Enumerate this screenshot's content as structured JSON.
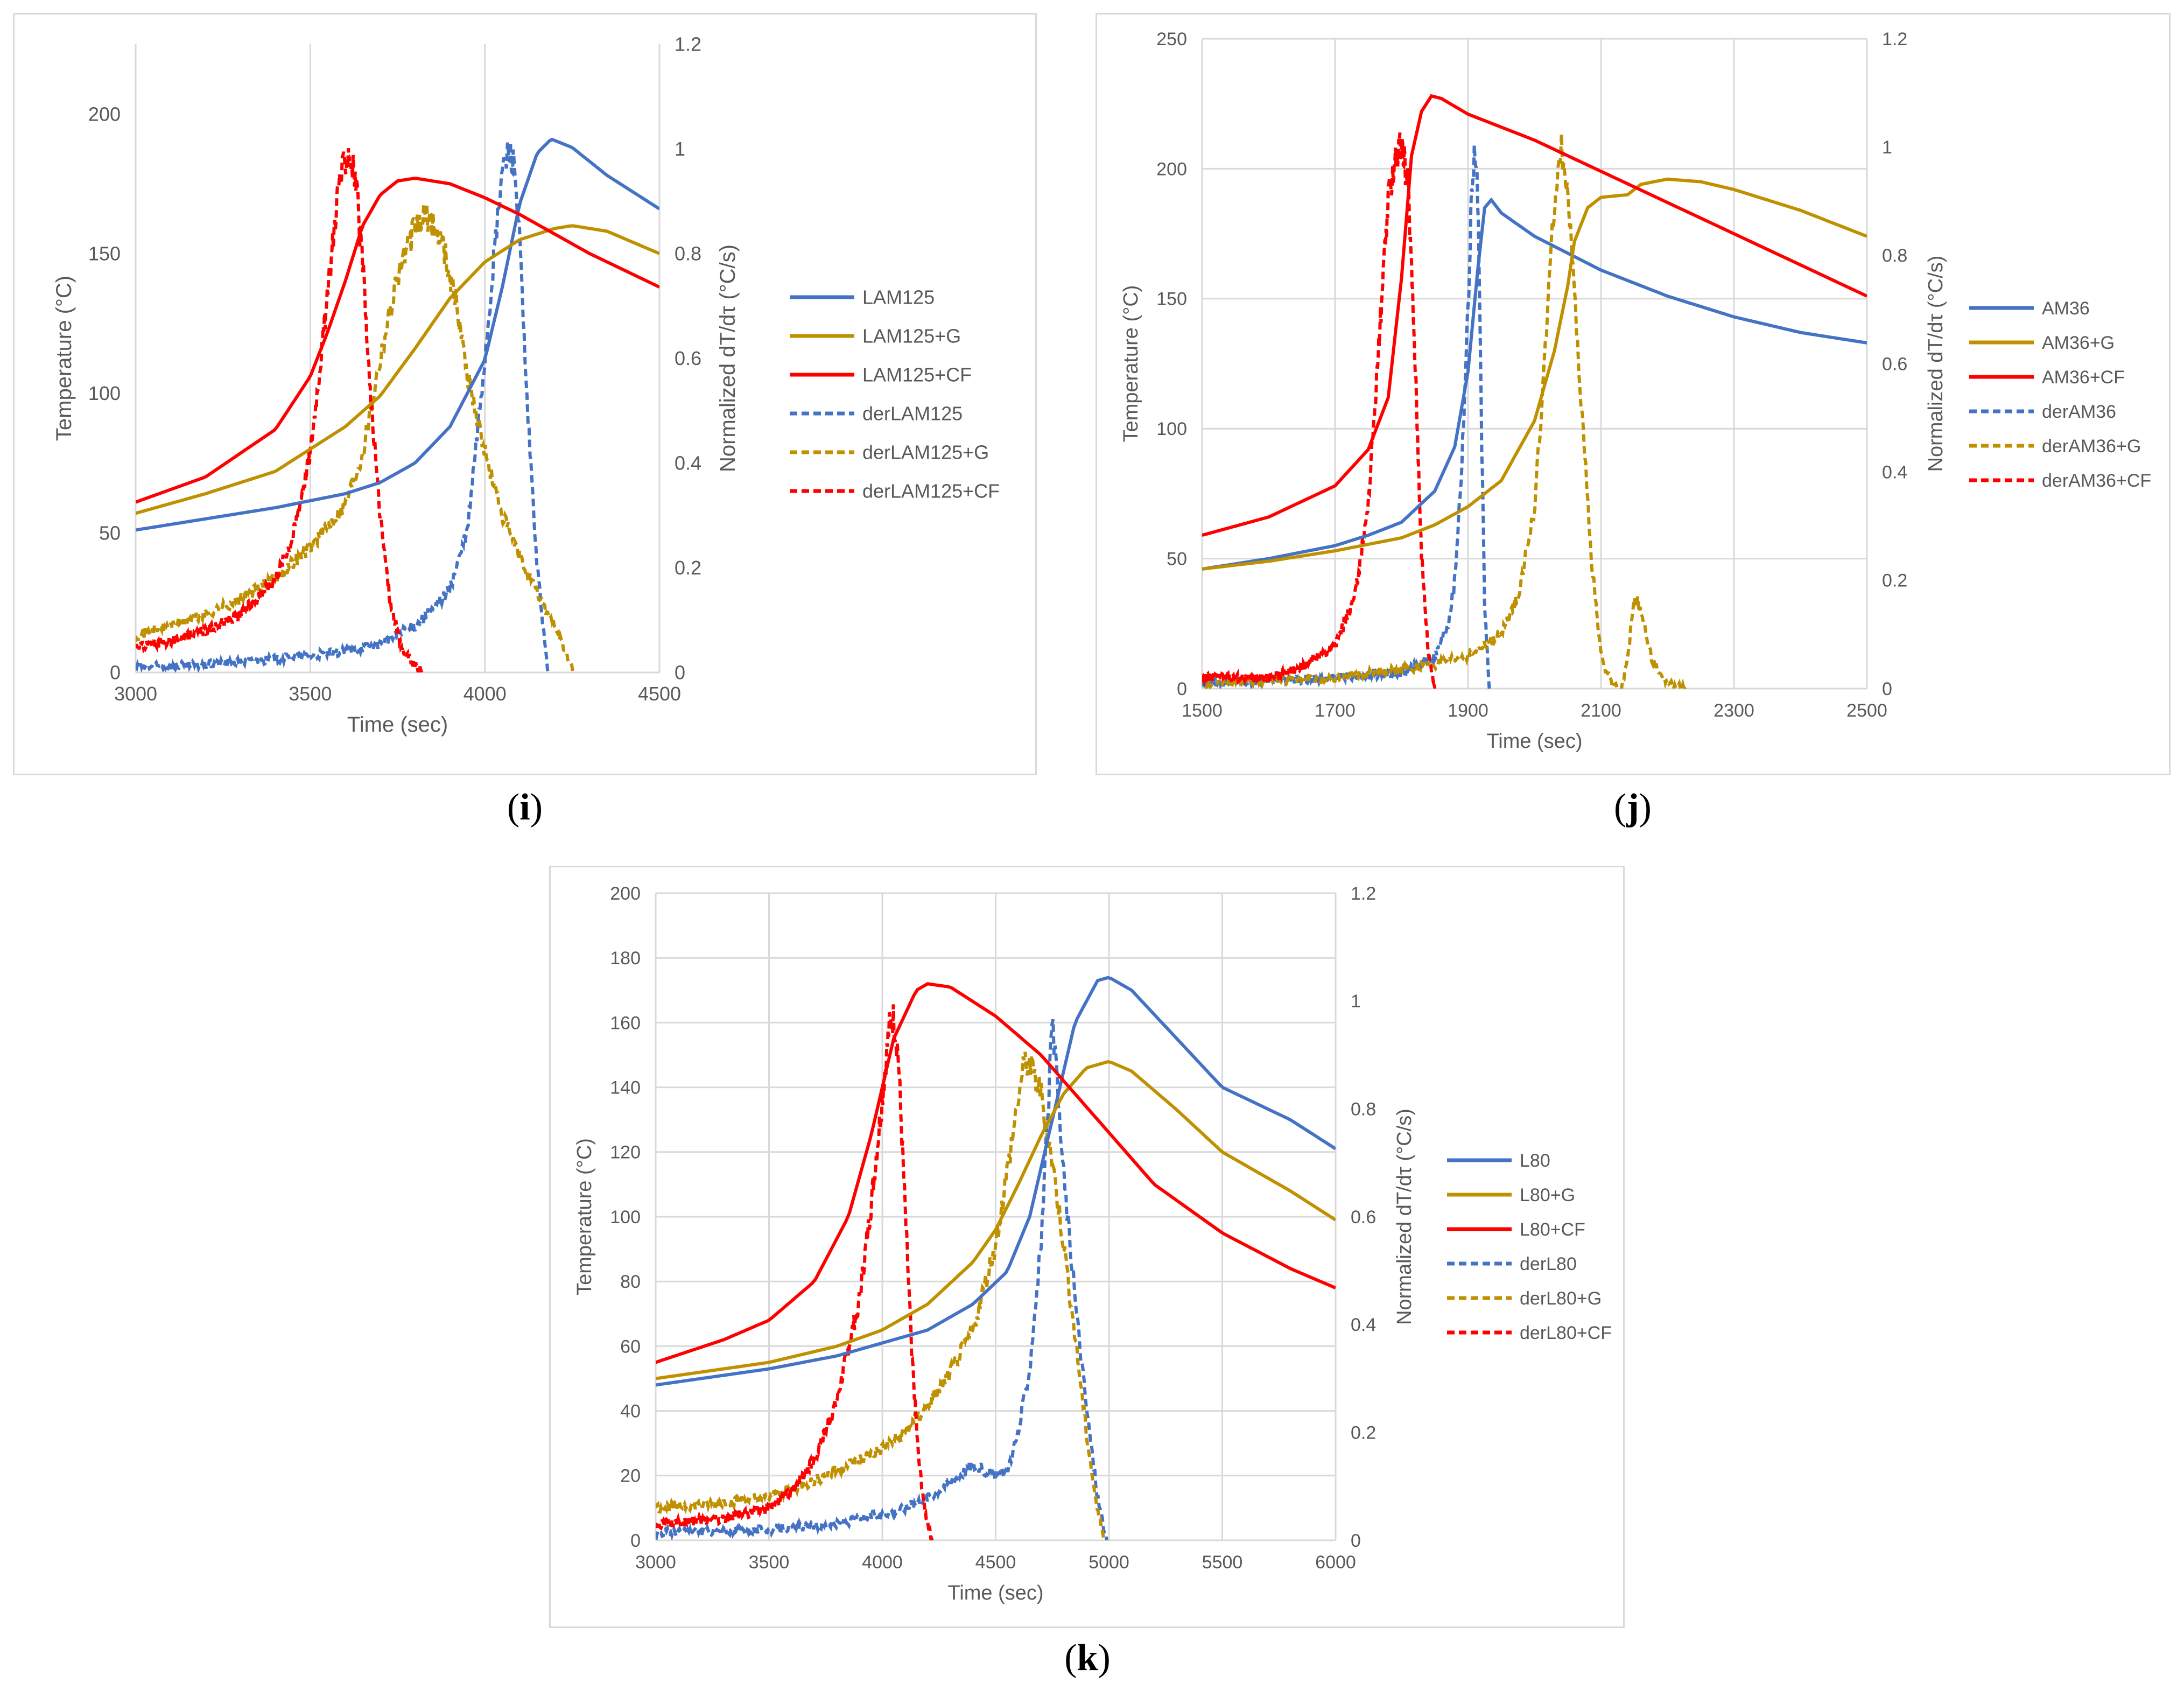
{
  "colors": {
    "blue": "#4472c4",
    "gold": "#bf9000",
    "red": "#ff0000",
    "grid": "#d9d9d9",
    "axis_text": "#595959"
  },
  "panels": [
    {
      "label": "i"
    },
    {
      "label": "j"
    },
    {
      "label": "k"
    }
  ],
  "chart_data": [
    {
      "type": "line",
      "panel": "i",
      "xlabel": "Time (sec)",
      "ylabel": "Temperature (°C)",
      "y2label": "Normalized dT/dτ (°C/s)",
      "xlim": [
        3000,
        4500
      ],
      "ylim": [
        0,
        225
      ],
      "y2lim": [
        0,
        1.2
      ],
      "xticks": [
        "3000",
        "3500",
        "4000",
        "4500"
      ],
      "yticks": [
        "0",
        "50",
        "100",
        "150",
        "200"
      ],
      "y2ticks": [
        "0",
        "0.2",
        "0.4",
        "0.6",
        "0.8",
        "1",
        "1.2"
      ],
      "grid": "vertical",
      "legend_position": "right",
      "series": [
        {
          "name": "LAM125",
          "axis": "left",
          "style": "solid",
          "color": "blue",
          "x": [
            3000,
            3200,
            3400,
            3600,
            3700,
            3800,
            3900,
            4000,
            4050,
            4100,
            4150,
            4190,
            4250,
            4350,
            4500
          ],
          "y": [
            51,
            55,
            59,
            64,
            68,
            75,
            88,
            112,
            138,
            168,
            186,
            191,
            188,
            178,
            166
          ]
        },
        {
          "name": "LAM125+G",
          "axis": "left",
          "style": "solid",
          "color": "gold",
          "x": [
            3000,
            3200,
            3400,
            3600,
            3700,
            3800,
            3900,
            4000,
            4100,
            4200,
            4250,
            4350,
            4500
          ],
          "y": [
            57,
            64,
            72,
            88,
            99,
            116,
            134,
            147,
            155,
            159,
            160,
            158,
            150
          ]
        },
        {
          "name": "LAM125+CF",
          "axis": "left",
          "style": "solid",
          "color": "red",
          "x": [
            3000,
            3200,
            3400,
            3500,
            3550,
            3600,
            3650,
            3700,
            3750,
            3800,
            3900,
            4000,
            4100,
            4200,
            4300,
            4400,
            4500
          ],
          "y": [
            61,
            70,
            87,
            106,
            122,
            140,
            160,
            171,
            176,
            177,
            175,
            170,
            164,
            157,
            150,
            144,
            138
          ]
        },
        {
          "name": "derLAM125",
          "axis": "right",
          "style": "dashed",
          "color": "blue",
          "x": [
            3000,
            3200,
            3400,
            3600,
            3700,
            3800,
            3850,
            3900,
            3950,
            4000,
            4030,
            4050,
            4070,
            4085,
            4100,
            4120,
            4150,
            4180
          ],
          "y": [
            0.01,
            0.015,
            0.025,
            0.04,
            0.055,
            0.09,
            0.12,
            0.16,
            0.27,
            0.6,
            0.82,
            0.96,
            1.0,
            0.97,
            0.82,
            0.52,
            0.2,
            0.0
          ]
        },
        {
          "name": "derLAM125+G",
          "axis": "right",
          "style": "dashed",
          "color": "gold",
          "x": [
            3000,
            3100,
            3200,
            3300,
            3400,
            3500,
            3600,
            3650,
            3700,
            3750,
            3800,
            3830,
            3850,
            3880,
            3920,
            3950,
            4000,
            4050,
            4100,
            4150,
            4200,
            4230,
            4255
          ],
          "y": [
            0.07,
            0.09,
            0.11,
            0.14,
            0.18,
            0.24,
            0.32,
            0.42,
            0.6,
            0.76,
            0.85,
            0.87,
            0.86,
            0.82,
            0.7,
            0.57,
            0.42,
            0.3,
            0.22,
            0.15,
            0.09,
            0.04,
            0.0
          ]
        },
        {
          "name": "derLAM125+CF",
          "axis": "right",
          "style": "dashed",
          "color": "red",
          "x": [
            3000,
            3100,
            3200,
            3300,
            3400,
            3450,
            3500,
            3550,
            3580,
            3610,
            3630,
            3650,
            3670,
            3700,
            3730,
            3760,
            3790,
            3820
          ],
          "y": [
            0.05,
            0.06,
            0.08,
            0.11,
            0.18,
            0.26,
            0.42,
            0.72,
            0.93,
            1.0,
            0.94,
            0.78,
            0.55,
            0.3,
            0.13,
            0.05,
            0.02,
            0.0
          ]
        }
      ]
    },
    {
      "type": "line",
      "panel": "j",
      "xlabel": "Time (sec)",
      "ylabel": "Temperature (°C)",
      "y2label": "Normalized dT/dτ (°C/s)",
      "xlim": [
        1500,
        2500
      ],
      "ylim": [
        0,
        250
      ],
      "y2lim": [
        0,
        1.2
      ],
      "xticks": [
        "1500",
        "1700",
        "1900",
        "2100",
        "2300",
        "2500"
      ],
      "yticks": [
        "0",
        "50",
        "100",
        "150",
        "200",
        "250"
      ],
      "y2ticks": [
        "0",
        "0.2",
        "0.4",
        "0.6",
        "0.8",
        "1",
        "1.2"
      ],
      "grid": "both",
      "legend_position": "right",
      "series": [
        {
          "name": "AM36",
          "axis": "left",
          "style": "solid",
          "color": "blue",
          "x": [
            1500,
            1600,
            1700,
            1750,
            1800,
            1850,
            1880,
            1900,
            1915,
            1925,
            1935,
            1950,
            2000,
            2100,
            2200,
            2300,
            2400,
            2450,
            2500
          ],
          "y": [
            46,
            50,
            55,
            59,
            64,
            76,
            93,
            122,
            162,
            185,
            188,
            183,
            174,
            161,
            151,
            143,
            137,
            135,
            133
          ]
        },
        {
          "name": "AM36+G",
          "axis": "left",
          "style": "solid",
          "color": "gold",
          "x": [
            1500,
            1600,
            1700,
            1800,
            1850,
            1900,
            1950,
            2000,
            2030,
            2050,
            2060,
            2080,
            2100,
            2140,
            2160,
            2200,
            2250,
            2300,
            2400,
            2500
          ],
          "y": [
            46,
            49,
            53,
            58,
            63,
            70,
            80,
            103,
            130,
            155,
            172,
            185,
            189,
            190,
            194,
            196,
            195,
            192,
            184,
            174
          ]
        },
        {
          "name": "AM36+CF",
          "axis": "left",
          "style": "solid",
          "color": "red",
          "x": [
            1500,
            1600,
            1700,
            1750,
            1780,
            1800,
            1815,
            1830,
            1845,
            1860,
            1900,
            2000,
            2100,
            2200,
            2300,
            2400,
            2500
          ],
          "y": [
            59,
            66,
            78,
            92,
            112,
            158,
            205,
            222,
            228,
            227,
            221,
            211,
            199,
            187,
            175,
            163,
            151
          ]
        },
        {
          "name": "derAM36",
          "axis": "right",
          "style": "dashed",
          "color": "blue",
          "x": [
            1500,
            1600,
            1700,
            1800,
            1850,
            1870,
            1880,
            1890,
            1900,
            1905,
            1910,
            1915,
            1920,
            1925,
            1932
          ],
          "y": [
            0.01,
            0.015,
            0.02,
            0.03,
            0.06,
            0.12,
            0.2,
            0.4,
            0.7,
            0.9,
            1.0,
            0.9,
            0.5,
            0.15,
            0.0
          ]
        },
        {
          "name": "derAM36+G",
          "axis": "right",
          "style": "dashed",
          "color": "gold",
          "x": [
            1500,
            1700,
            1800,
            1850,
            1900,
            1950,
            1975,
            2000,
            2015,
            2030,
            2040,
            2050,
            2060,
            2075,
            2085,
            2100,
            2115,
            2130,
            2140,
            2148,
            2155,
            2165,
            2175,
            2190,
            2210,
            2230
          ],
          "y": [
            0.01,
            0.02,
            0.035,
            0.045,
            0.06,
            0.1,
            0.17,
            0.33,
            0.6,
            0.9,
            1.0,
            0.92,
            0.72,
            0.44,
            0.25,
            0.06,
            0.01,
            0.0,
            0.05,
            0.16,
            0.16,
            0.12,
            0.06,
            0.02,
            0.005,
            0.0
          ]
        },
        {
          "name": "derAM36+CF",
          "axis": "right",
          "style": "dashed",
          "color": "red",
          "x": [
            1500,
            1600,
            1650,
            1700,
            1730,
            1750,
            1765,
            1780,
            1790,
            1800,
            1810,
            1820,
            1830,
            1840,
            1850
          ],
          "y": [
            0.02,
            0.02,
            0.04,
            0.08,
            0.17,
            0.34,
            0.62,
            0.9,
            0.98,
            1.0,
            0.93,
            0.62,
            0.25,
            0.07,
            0.0
          ]
        }
      ]
    },
    {
      "type": "line",
      "panel": "k",
      "xlabel": "Time (sec)",
      "ylabel": "Temperature (°C)",
      "y2label": "Normalized dT/dτ (°C/s)",
      "xlim": [
        3000,
        6000
      ],
      "ylim": [
        0,
        200
      ],
      "y2lim": [
        0,
        1.2
      ],
      "xticks": [
        "3000",
        "3500",
        "4000",
        "4500",
        "5000",
        "5500",
        "6000"
      ],
      "yticks": [
        "0",
        "20",
        "40",
        "60",
        "80",
        "100",
        "120",
        "140",
        "160",
        "180",
        "200"
      ],
      "y2ticks": [
        "0",
        "0.2",
        "0.4",
        "0.6",
        "0.8",
        "1",
        "1.2"
      ],
      "grid": "both",
      "legend_position": "right",
      "series": [
        {
          "name": "L80",
          "axis": "left",
          "style": "solid",
          "color": "blue",
          "x": [
            3000,
            3500,
            3800,
            4000,
            4200,
            4400,
            4550,
            4650,
            4750,
            4850,
            4950,
            5000,
            5100,
            5300,
            5500,
            5800,
            6000
          ],
          "y": [
            48,
            53,
            57,
            61,
            65,
            73,
            83,
            100,
            130,
            160,
            173,
            174,
            170,
            155,
            140,
            130,
            121
          ]
        },
        {
          "name": "L80+G",
          "axis": "left",
          "style": "solid",
          "color": "gold",
          "x": [
            3000,
            3500,
            3800,
            4000,
            4200,
            4400,
            4500,
            4600,
            4700,
            4800,
            4900,
            5000,
            5100,
            5300,
            5500,
            5800,
            6000
          ],
          "y": [
            50,
            55,
            60,
            65,
            73,
            86,
            96,
            110,
            125,
            138,
            146,
            148,
            145,
            133,
            120,
            108,
            99
          ]
        },
        {
          "name": "L80+CF",
          "axis": "left",
          "style": "solid",
          "color": "red",
          "x": [
            3000,
            3300,
            3500,
            3700,
            3850,
            3950,
            4050,
            4150,
            4200,
            4300,
            4500,
            4700,
            4900,
            5000,
            5200,
            5500,
            5800,
            6000
          ],
          "y": [
            55,
            62,
            68,
            80,
            100,
            125,
            155,
            170,
            172,
            171,
            162,
            150,
            134,
            126,
            110,
            95,
            84,
            78
          ]
        },
        {
          "name": "derL80",
          "axis": "right",
          "style": "dashed",
          "color": "blue",
          "x": [
            3000,
            3500,
            3800,
            4000,
            4100,
            4200,
            4300,
            4400,
            4500,
            4550,
            4600,
            4650,
            4700,
            4730,
            4750,
            4770,
            4800,
            4850,
            4900,
            4950,
            4990
          ],
          "y": [
            0.015,
            0.02,
            0.03,
            0.05,
            0.06,
            0.08,
            0.11,
            0.14,
            0.12,
            0.13,
            0.2,
            0.32,
            0.55,
            0.78,
            0.96,
            0.85,
            0.68,
            0.45,
            0.25,
            0.08,
            0.0
          ]
        },
        {
          "name": "derL80+G",
          "axis": "right",
          "style": "dashed",
          "color": "gold",
          "x": [
            3000,
            3300,
            3500,
            3700,
            3900,
            4000,
            4100,
            4200,
            4300,
            4400,
            4500,
            4550,
            4600,
            4630,
            4650,
            4680,
            4700,
            4750,
            4800,
            4850,
            4900,
            4950,
            4985
          ],
          "y": [
            0.06,
            0.07,
            0.08,
            0.11,
            0.15,
            0.17,
            0.2,
            0.25,
            0.31,
            0.39,
            0.55,
            0.68,
            0.82,
            0.89,
            0.88,
            0.85,
            0.83,
            0.7,
            0.55,
            0.38,
            0.2,
            0.05,
            0.0
          ]
        },
        {
          "name": "derL80+CF",
          "axis": "right",
          "style": "dashed",
          "color": "red",
          "x": [
            3000,
            3300,
            3500,
            3600,
            3700,
            3800,
            3900,
            3950,
            4000,
            4030,
            4050,
            4070,
            4100,
            4130,
            4160,
            4190,
            4220
          ],
          "y": [
            0.03,
            0.04,
            0.06,
            0.09,
            0.15,
            0.26,
            0.45,
            0.62,
            0.82,
            0.95,
            0.97,
            0.9,
            0.62,
            0.35,
            0.15,
            0.05,
            0.0
          ]
        }
      ]
    }
  ]
}
